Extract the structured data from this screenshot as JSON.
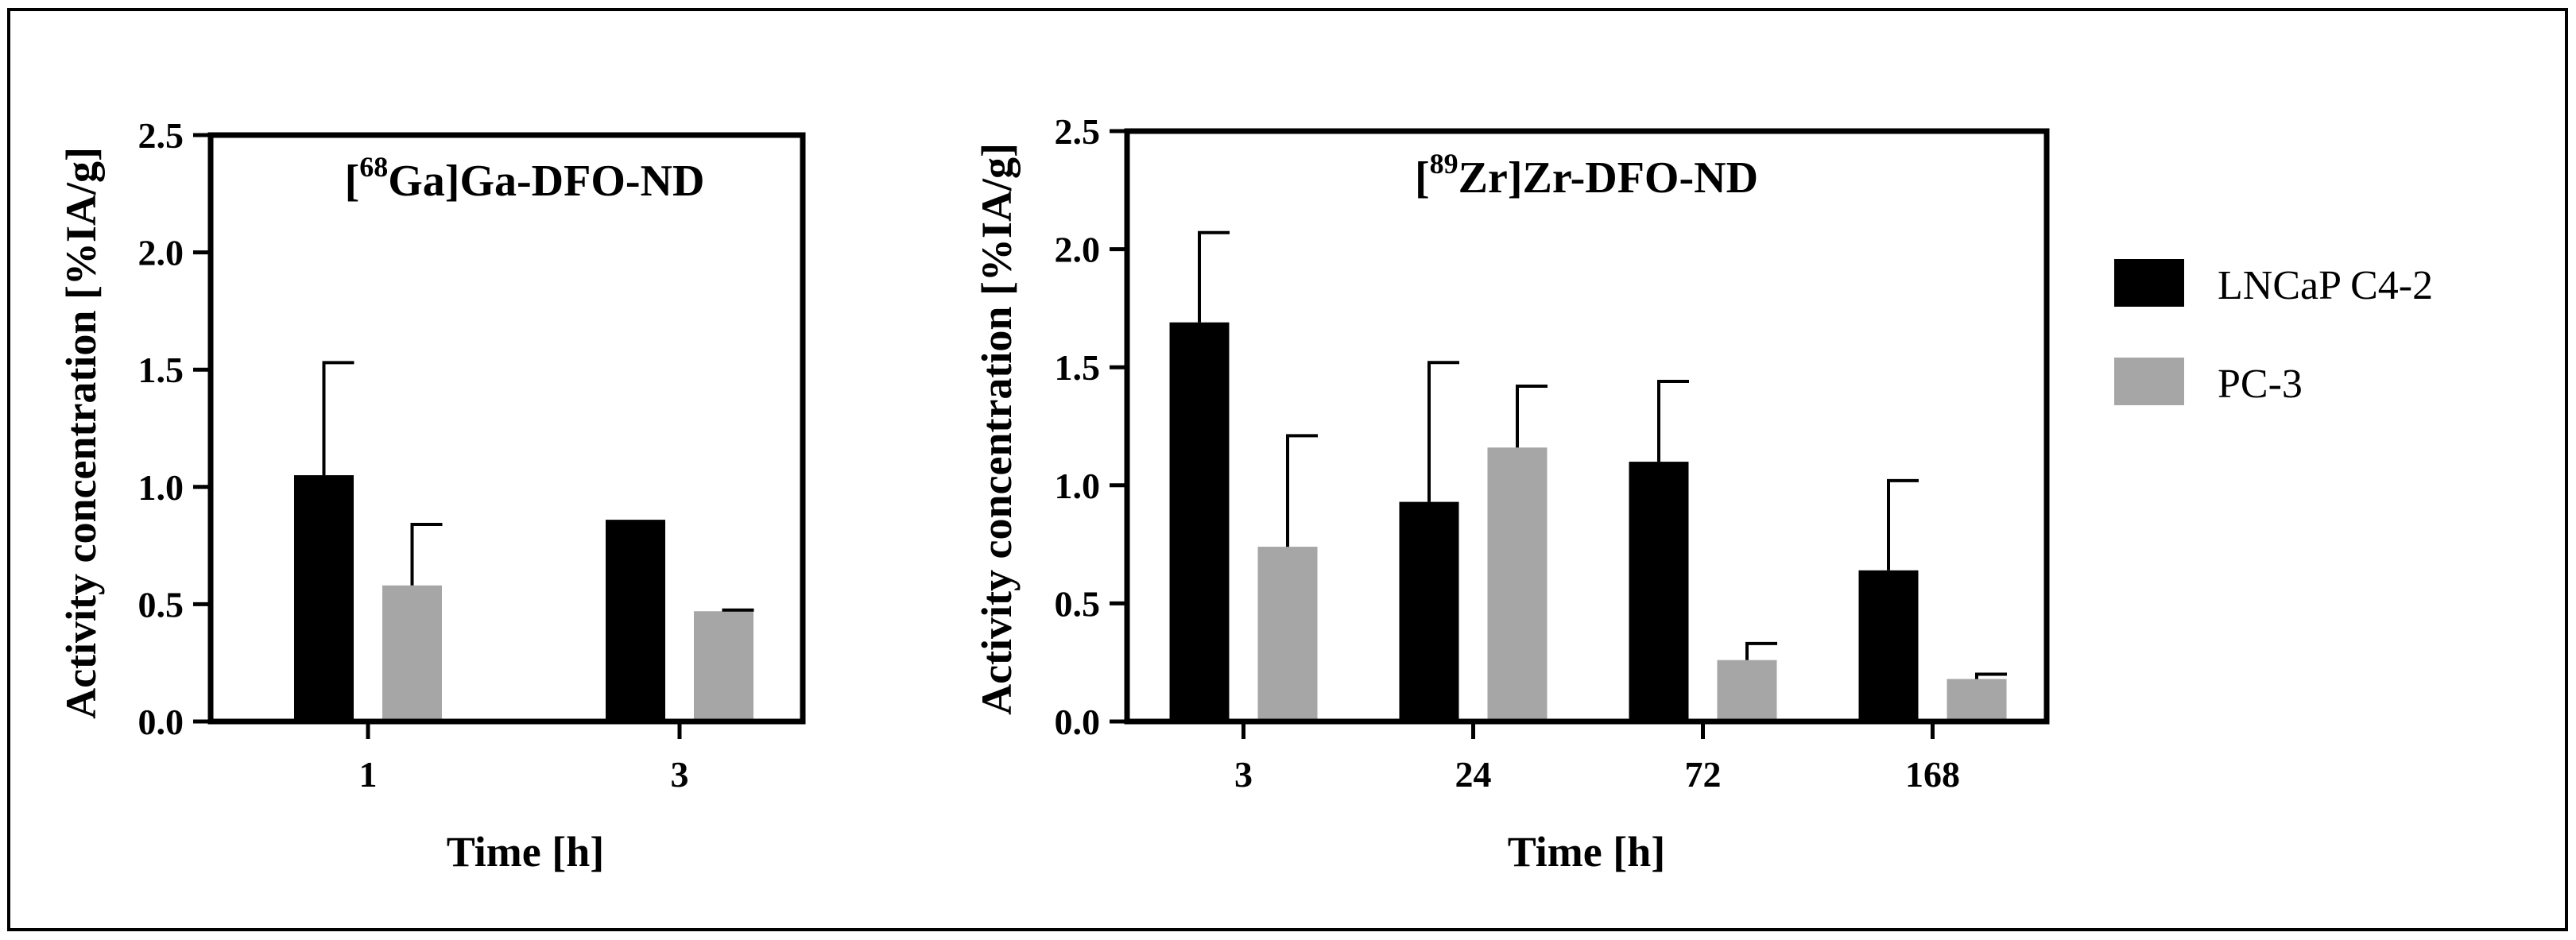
{
  "colors": {
    "series_1": "#000000",
    "series_2": "#a6a6a6",
    "frame": "#000000"
  },
  "legend": {
    "items": [
      {
        "label": "LNCaP C4-2"
      },
      {
        "label": "PC-3"
      }
    ]
  },
  "chart_data": [
    {
      "type": "bar",
      "title": {
        "prefix": "[",
        "superscript": "68",
        "suffix": "Ga]Ga-DFO-ND"
      },
      "xlabel": "Time [h]",
      "ylabel": "Activity concentration [%IA/g]",
      "ylim": [
        0,
        2.5
      ],
      "yticks": [
        "0.0",
        "0.5",
        "1.0",
        "1.5",
        "2.0",
        "2.5"
      ],
      "categories": [
        "1",
        "3"
      ],
      "series": [
        {
          "name": "LNCaP C4-2",
          "values": [
            1.05,
            0.86
          ],
          "errors": [
            0.48,
            0
          ]
        },
        {
          "name": "PC-3",
          "values": [
            0.58,
            0.47
          ],
          "errors": [
            0.26,
            0.005
          ]
        }
      ]
    },
    {
      "type": "bar",
      "title": {
        "prefix": "[",
        "superscript": "89",
        "suffix": "Zr]Zr-DFO-ND"
      },
      "xlabel": "Time [h]",
      "ylabel": "Activity concentration [%IA/g]",
      "ylim": [
        0,
        2.5
      ],
      "yticks": [
        "0.0",
        "0.5",
        "1.0",
        "1.5",
        "2.0",
        "2.5"
      ],
      "categories": [
        "3",
        "24",
        "72",
        "168"
      ],
      "series": [
        {
          "name": "LNCaP C4-2",
          "values": [
            1.69,
            0.93,
            1.1,
            0.64
          ],
          "errors": [
            0.38,
            0.59,
            0.34,
            0.38
          ]
        },
        {
          "name": "PC-3",
          "values": [
            0.74,
            1.16,
            0.26,
            0.18
          ],
          "errors": [
            0.47,
            0.26,
            0.07,
            0.02
          ]
        }
      ]
    }
  ]
}
